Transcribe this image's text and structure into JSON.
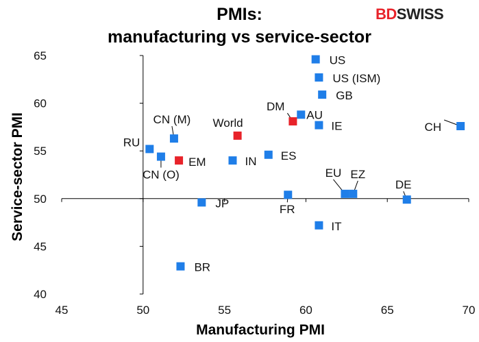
{
  "chart_data": {
    "type": "scatter",
    "title": "PMIs:",
    "subtitle": "manufacturing vs service-sector",
    "xlabel": "Manufacturing PMI",
    "ylabel": "Service-sector PMI",
    "xlim": [
      45,
      70
    ],
    "ylim": [
      40,
      65
    ],
    "x_ticks": [
      45,
      50,
      55,
      60,
      65,
      70
    ],
    "y_ticks": [
      40,
      45,
      50,
      55,
      60,
      65
    ],
    "axis_cross": {
      "x": 50,
      "y": 50
    },
    "grid": false,
    "colors": {
      "country": "#1f7ee8",
      "aggregate": "#e8232a"
    },
    "points": [
      {
        "label": "US",
        "x": 60.6,
        "y": 64.6,
        "kind": "country"
      },
      {
        "label": "US (ISM)",
        "x": 60.8,
        "y": 62.7,
        "kind": "country"
      },
      {
        "label": "GB",
        "x": 61.0,
        "y": 60.9,
        "kind": "country"
      },
      {
        "label": "AU",
        "x": 59.7,
        "y": 58.8,
        "kind": "country"
      },
      {
        "label": "DM",
        "x": 59.2,
        "y": 58.1,
        "kind": "aggregate"
      },
      {
        "label": "IE",
        "x": 60.8,
        "y": 57.7,
        "kind": "country"
      },
      {
        "label": "CH",
        "x": 69.5,
        "y": 57.6,
        "kind": "country"
      },
      {
        "label": "World",
        "x": 55.8,
        "y": 56.6,
        "kind": "aggregate"
      },
      {
        "label": "CN (M)",
        "x": 51.9,
        "y": 56.3,
        "kind": "country"
      },
      {
        "label": "RU",
        "x": 50.4,
        "y": 55.2,
        "kind": "country"
      },
      {
        "label": "CN (O)",
        "x": 51.1,
        "y": 54.4,
        "kind": "country"
      },
      {
        "label": "EM",
        "x": 52.2,
        "y": 54.0,
        "kind": "aggregate"
      },
      {
        "label": "IN",
        "x": 55.5,
        "y": 54.0,
        "kind": "country"
      },
      {
        "label": "ES",
        "x": 57.7,
        "y": 54.6,
        "kind": "country"
      },
      {
        "label": "EU",
        "x": 62.4,
        "y": 50.5,
        "kind": "country"
      },
      {
        "label": "EZ",
        "x": 62.9,
        "y": 50.5,
        "kind": "country"
      },
      {
        "label": "DE",
        "x": 66.2,
        "y": 49.9,
        "kind": "country"
      },
      {
        "label": "FR",
        "x": 58.9,
        "y": 50.4,
        "kind": "country"
      },
      {
        "label": "JP",
        "x": 53.6,
        "y": 49.6,
        "kind": "country"
      },
      {
        "label": "IT",
        "x": 60.8,
        "y": 47.2,
        "kind": "country"
      },
      {
        "label": "BR",
        "x": 52.3,
        "y": 42.9,
        "kind": "country"
      }
    ]
  },
  "brand": {
    "part1": "BD",
    "part2": "SWISS"
  }
}
